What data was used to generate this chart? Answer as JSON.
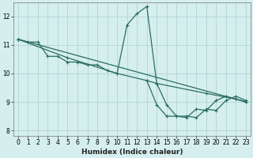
{
  "xlabel": "Humidex (Indice chaleur)",
  "bg_color": "#d5eeee",
  "grid_color": "#b8d8d8",
  "line_color": "#2a6e60",
  "xlim": [
    -0.5,
    23.5
  ],
  "ylim": [
    7.8,
    12.5
  ],
  "xticks": [
    0,
    1,
    2,
    3,
    4,
    5,
    6,
    7,
    8,
    9,
    10,
    11,
    12,
    13,
    14,
    15,
    16,
    17,
    18,
    19,
    20,
    21,
    22,
    23
  ],
  "yticks": [
    8,
    9,
    10,
    11,
    12
  ],
  "series": [
    {
      "x": [
        0,
        1,
        2,
        3,
        4,
        5,
        6,
        7,
        8,
        9,
        10,
        11,
        12,
        13,
        14,
        15,
        16,
        17,
        18,
        19,
        20,
        21,
        22,
        23
      ],
      "y": [
        11.2,
        11.1,
        11.1,
        10.6,
        10.6,
        10.4,
        10.4,
        10.3,
        10.3,
        10.1,
        10.0,
        11.7,
        12.1,
        12.35,
        9.65,
        8.9,
        8.5,
        8.5,
        8.45,
        8.75,
        8.7,
        9.05,
        9.2,
        9.05
      ]
    },
    {
      "x": [
        0,
        23
      ],
      "y": [
        11.2,
        9.0
      ]
    },
    {
      "x": [
        0,
        5,
        10,
        13,
        14,
        19,
        22,
        23
      ],
      "y": [
        11.2,
        10.55,
        10.0,
        9.75,
        9.65,
        9.3,
        9.1,
        9.0
      ]
    },
    {
      "x": [
        13,
        14,
        15,
        16,
        17,
        18,
        19,
        20,
        21,
        22,
        23
      ],
      "y": [
        9.75,
        8.9,
        8.5,
        8.5,
        8.45,
        8.75,
        8.7,
        9.05,
        9.2,
        9.1,
        9.0
      ]
    }
  ]
}
